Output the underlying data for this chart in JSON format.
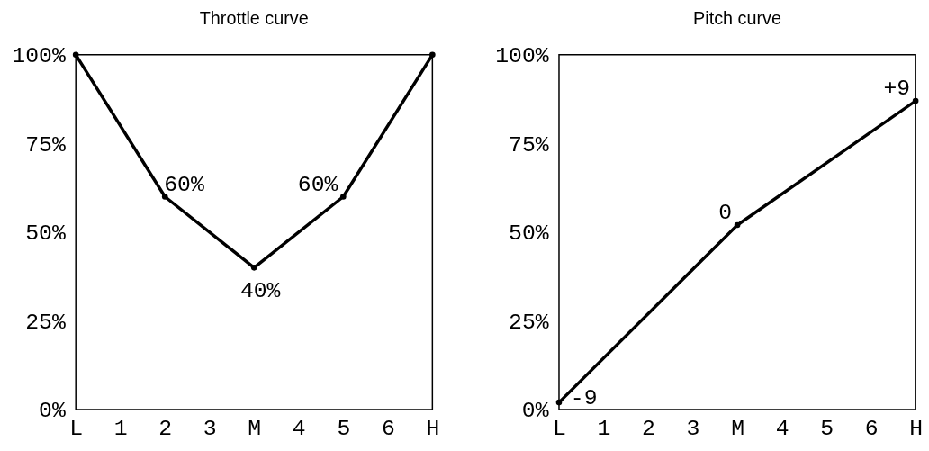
{
  "chart_data": [
    {
      "type": "line",
      "title": "Throttle curve",
      "categories": [
        "L",
        "1",
        "2",
        "3",
        "M",
        "4",
        "5",
        "6",
        "H"
      ],
      "series": [
        {
          "color": "#000000",
          "x": [
            "L",
            "2",
            "M",
            "5",
            "H"
          ],
          "values": [
            100,
            60,
            40,
            60,
            100
          ],
          "value_labels": [
            null,
            "60%",
            "40%",
            "60%",
            null
          ]
        }
      ],
      "ylim": [
        0,
        100
      ],
      "yticks": [
        {
          "value": 0,
          "label": "0%"
        },
        {
          "value": 25,
          "label": "25%"
        },
        {
          "value": 50,
          "label": "50%"
        },
        {
          "value": 75,
          "label": "75%"
        },
        {
          "value": 100,
          "label": "100%"
        }
      ],
      "marker": "circle",
      "line_style": "solid"
    },
    {
      "type": "line",
      "title": "Pitch curve",
      "categories": [
        "L",
        "1",
        "2",
        "3",
        "M",
        "4",
        "5",
        "6",
        "H"
      ],
      "series": [
        {
          "color": "#000000",
          "x": [
            "L",
            "M",
            "H"
          ],
          "values": [
            2,
            52,
            87
          ]
        }
      ],
      "annotations": [
        {
          "text": "-9",
          "x": "L",
          "y": 2
        },
        {
          "text": "0",
          "x": "M",
          "y": 52
        },
        {
          "text": "+9",
          "x": "H",
          "y": 87
        }
      ],
      "ylim": [
        0,
        100
      ],
      "yticks": [
        {
          "value": 0,
          "label": "0%"
        },
        {
          "value": 25,
          "label": "25%"
        },
        {
          "value": 50,
          "label": "50%"
        },
        {
          "value": 75,
          "label": "75%"
        },
        {
          "value": 100,
          "label": "100%"
        }
      ],
      "marker": "circle",
      "line_style": "solid"
    }
  ]
}
